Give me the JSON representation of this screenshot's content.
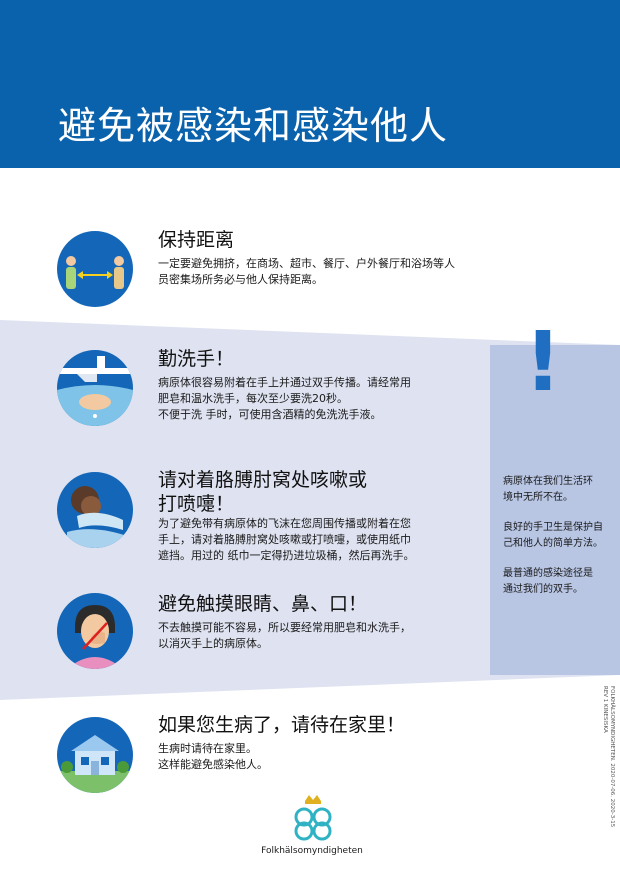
{
  "header": {
    "title": "避免被感染和感染他人"
  },
  "sections": [
    {
      "title": "保持距离",
      "body": [
        "一定要避免拥挤，在商场、超市、餐厅、户外餐厅和浴场等人",
        "员密集场所务必与他人保持距离。"
      ],
      "icon": "keep-distance-icon"
    },
    {
      "title": "勤洗手！",
      "body": [
        "病原体很容易附着在手上并通过双手传播。请经常用",
        "肥皂和温水洗手，每次至少要洗20秒。",
        "不便于洗 手时，可使用含酒精的免洗洗手液。"
      ],
      "icon": "hand-washing-icon"
    },
    {
      "title_lines": [
        "请对着胳膊肘窝处咳嗽或",
        "打喷嚏！"
      ],
      "body": [
        "为了避免带有病原体的飞沫在您周围传播或附着在您",
        "手上，请对着胳膊肘窝处咳嗽或打喷嚏，或使用纸巾",
        "遮挡。用过的 纸巾一定得扔进垃圾桶，然后再洗手。"
      ],
      "icon": "cough-into-elbow-icon"
    },
    {
      "title": "避免触摸眼睛、鼻、口！",
      "body": [
        "不去触摸可能不容易，所以要经常用肥皂和水洗手，",
        "以消灭手上的病原体。"
      ],
      "icon": "avoid-face-touching-icon"
    },
    {
      "title": "如果您生病了，请待在家里！",
      "body": [
        "生病时请待在家里。",
        "这样能避免感染他人。"
      ],
      "icon": "stay-home-icon"
    }
  ],
  "side_panel": {
    "symbol": "!",
    "paragraphs": [
      [
        "病原体在我们生活环",
        "境中无所不在。"
      ],
      [
        "良好的手卫生是保护自",
        "己和他人的简单方法。"
      ],
      [
        "最普通的感染途径是",
        "通过我们的双手。"
      ]
    ]
  },
  "footer": {
    "logo_text": "Folkhälsomyndigheten",
    "reference": [
      "FOLKHÄLSOMYNDIGHETEN. 2020-07-06. 2020-3-15",
      "REV 1 KINESISKA"
    ]
  },
  "colors": {
    "header_bg": "#0b62ac",
    "band_bg": "#dfe3f1",
    "side_panel_bg": "#b8c6e4",
    "icon_bg": "#1467b8",
    "exclaim": "#1f6ec2"
  }
}
